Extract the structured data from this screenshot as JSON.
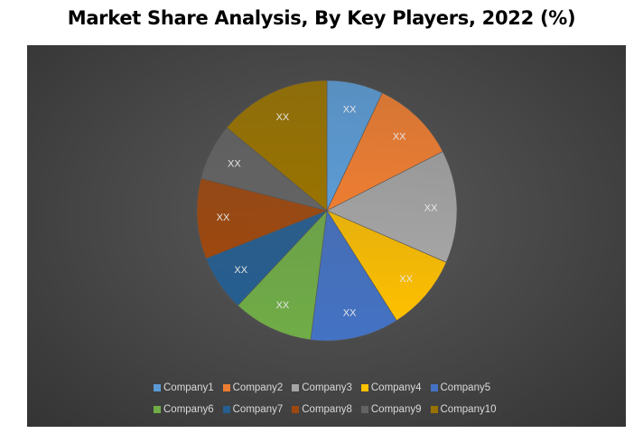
{
  "chart_data": {
    "type": "pie",
    "title": "Market Share Analysis, By Key Players, 2022 (%)",
    "start_angle": "12 o'clock, clockwise",
    "legend_placement": "bottom",
    "slices": [
      {
        "name": "Company1",
        "value": 7,
        "label": "XX",
        "color": "#5b9bd5"
      },
      {
        "name": "Company2",
        "value": 10.5,
        "label": "XX",
        "color": "#ed7d31"
      },
      {
        "name": "Company3",
        "value": 14,
        "label": "XX",
        "color": "#a5a5a5"
      },
      {
        "name": "Company4",
        "value": 9.5,
        "label": "XX",
        "color": "#ffc000"
      },
      {
        "name": "Company5",
        "value": 11,
        "label": "XX",
        "color": "#4472c4"
      },
      {
        "name": "Company6",
        "value": 10,
        "label": "XX",
        "color": "#70ad47"
      },
      {
        "name": "Company7",
        "value": 7,
        "label": "XX",
        "color": "#255e91"
      },
      {
        "name": "Company8",
        "value": 10,
        "label": "XX",
        "color": "#9e480e"
      },
      {
        "name": "Company9",
        "value": 7,
        "label": "XX",
        "color": "#636363"
      },
      {
        "name": "Company10",
        "value": 14,
        "label": "XX",
        "color": "#997300"
      }
    ]
  }
}
